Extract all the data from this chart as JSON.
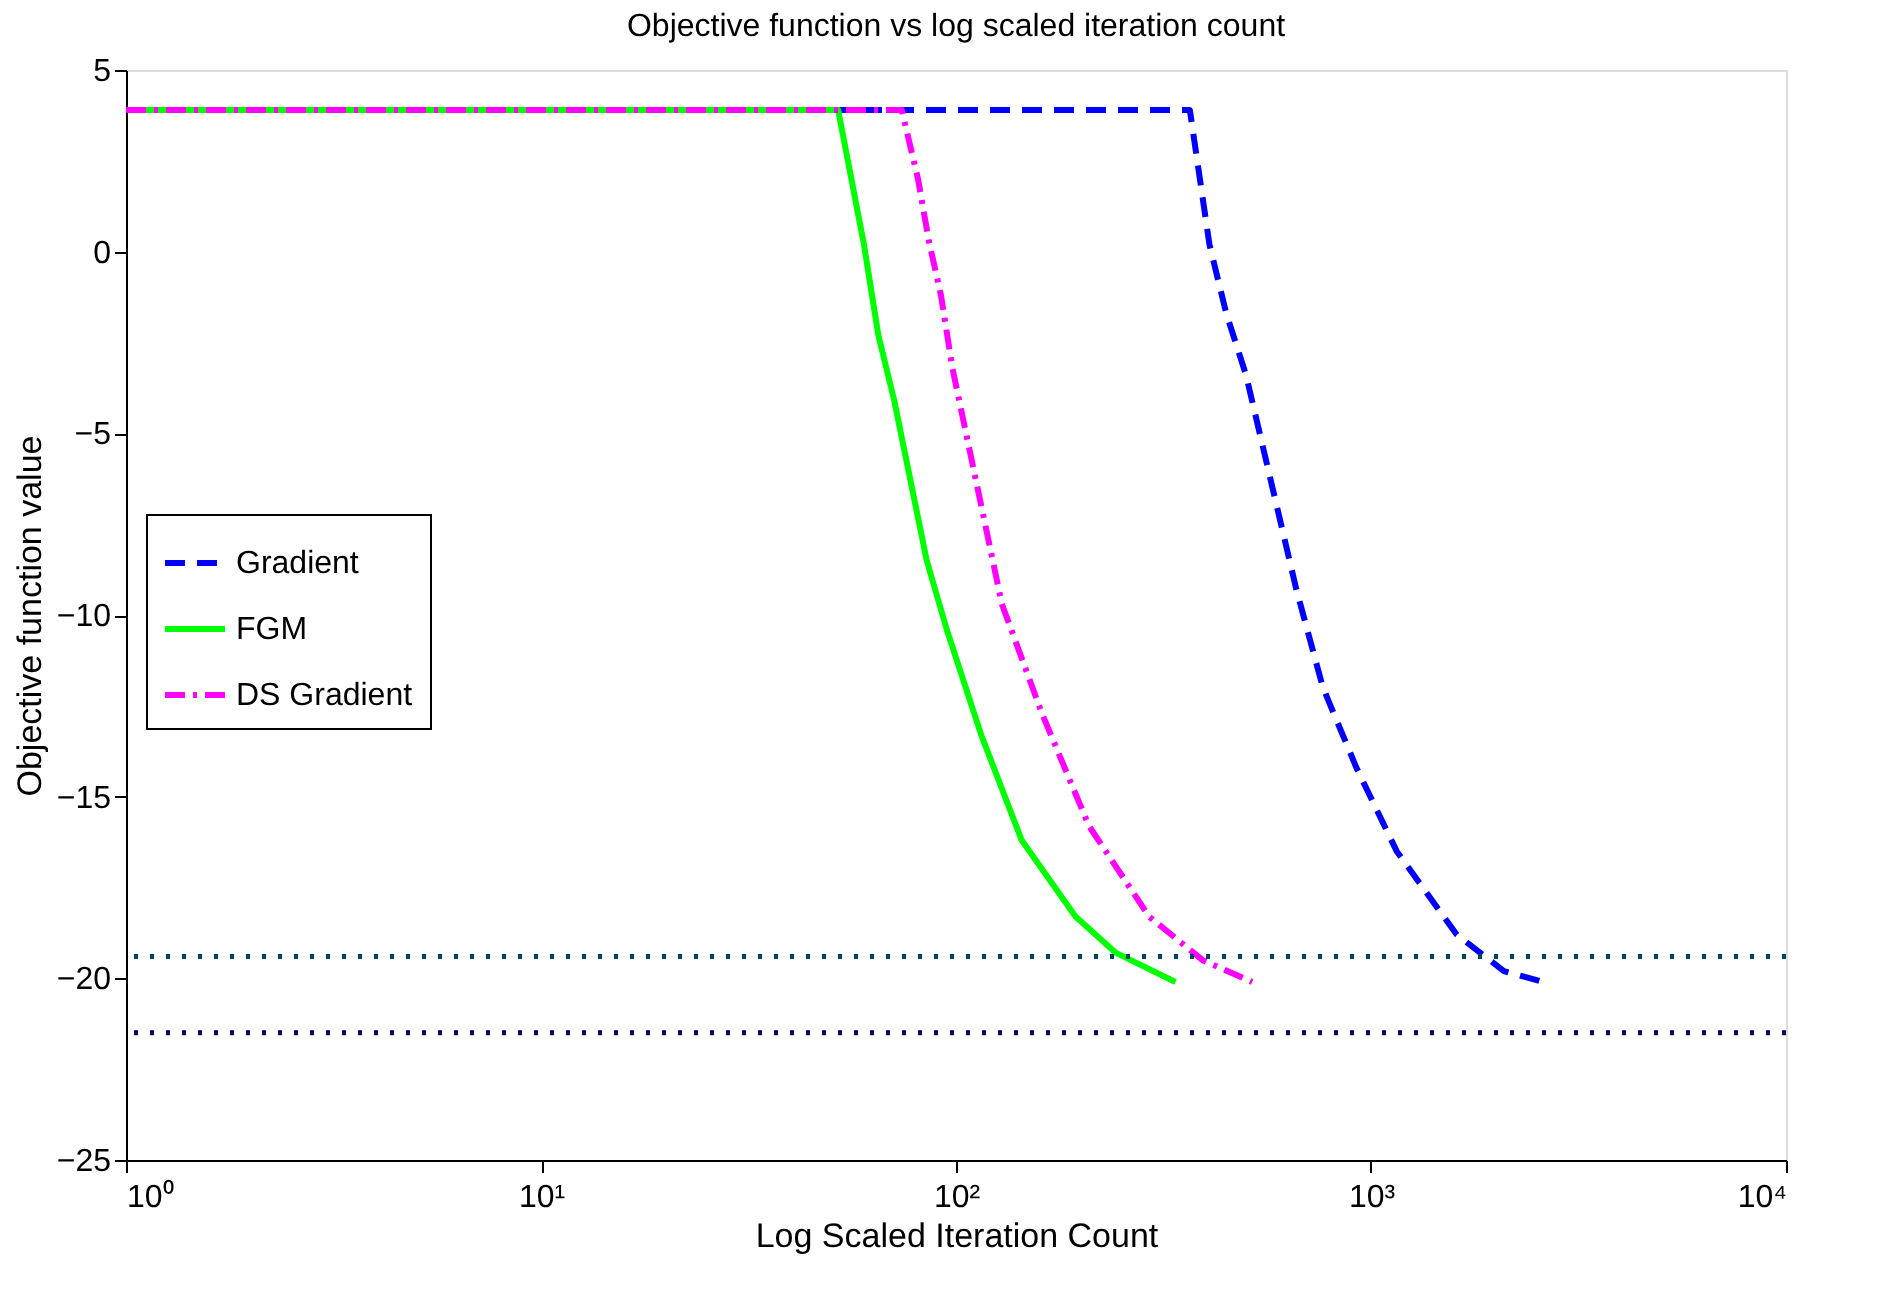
{
  "chart_data": {
    "type": "line",
    "title": "Objective function vs log scaled iteration count",
    "xlabel": "Log Scaled Iteration Count",
    "ylabel": "Objective function value",
    "log": "x",
    "xlim": [
      1,
      10000
    ],
    "ylim": [
      -25,
      5
    ],
    "xticks": [
      {
        "value": 1,
        "label": "10⁰"
      },
      {
        "value": 10,
        "label": "10¹"
      },
      {
        "value": 100,
        "label": "10²"
      },
      {
        "value": 1000,
        "label": "10³"
      },
      {
        "value": 10000,
        "label": "10⁴"
      }
    ],
    "yticks": [
      -25,
      -20,
      -15,
      -10,
      -5,
      0,
      5
    ],
    "grid": false,
    "legend": "left",
    "marker": "none",
    "series": [
      {
        "name": "Gradient",
        "color": "#0000ff",
        "line_style": "dashed",
        "x": [
          1,
          366,
          387,
          408,
          448,
          500,
          661,
          766,
          922,
          1153,
          1610,
          2090,
          2600
        ],
        "values": [
          3.9,
          3.9,
          2.0,
          0.2,
          -1.7,
          -3.4,
          -9.3,
          -12.0,
          -14.2,
          -16.5,
          -18.8,
          -19.8,
          -20.1
        ]
      },
      {
        "name": "FGM",
        "color": "#00ff00",
        "line_style": "solid",
        "x": [
          1,
          52,
          60,
          65,
          71,
          85,
          95,
          115,
          144,
          194,
          243,
          338
        ],
        "values": [
          3.9,
          3.9,
          0.2,
          -2.3,
          -4.1,
          -8.5,
          -10.4,
          -13.3,
          -16.2,
          -18.3,
          -19.3,
          -20.1
        ]
      },
      {
        "name": "DS Gradient",
        "color": "#ff00ff",
        "line_style": "dashdot",
        "x": [
          1,
          74,
          81,
          86,
          92,
          98,
          129,
          161,
          209,
          292,
          393,
          517
        ],
        "values": [
          3.9,
          3.9,
          2.0,
          0.3,
          -1.2,
          -3.2,
          -9.7,
          -12.7,
          -15.8,
          -18.3,
          -19.5,
          -20.1
        ]
      }
    ],
    "ref_lines": [
      {
        "axis": "y",
        "value": -19.4,
        "color": "#00465a",
        "line_style": "dotted"
      },
      {
        "axis": "y",
        "value": -21.5,
        "color": "#00005a",
        "line_style": "dotted"
      }
    ]
  }
}
